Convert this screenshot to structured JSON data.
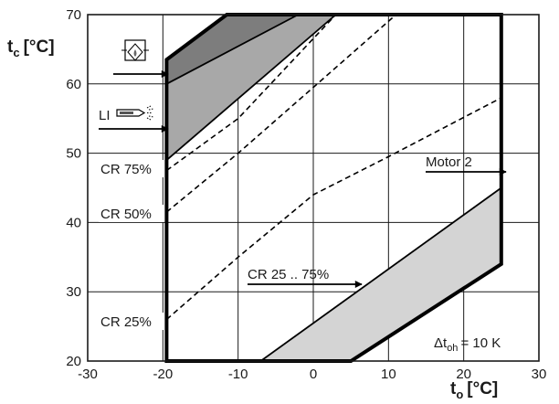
{
  "chart_data": {
    "type": "line",
    "title": "",
    "xlabel": "t",
    "xlabel_sub": "o",
    "xlabel_unit": "[°C]",
    "ylabel": "t",
    "ylabel_sub": "c",
    "ylabel_unit": "[°C]",
    "xlim": [
      -30,
      30
    ],
    "ylim": [
      20,
      70
    ],
    "x_ticks": [
      "-30",
      "-20",
      "-10",
      "0",
      "10",
      "20",
      "30"
    ],
    "y_ticks": [
      "20",
      "30",
      "40",
      "50",
      "60",
      "70"
    ],
    "grid": true,
    "colors": {
      "axis": "#1a1a1a",
      "envelope": "#000000",
      "dark_region": "#7d7d7d",
      "mid_region": "#a8a8a8",
      "light_region": "#d4d4d4"
    },
    "envelope": [
      [
        -19.5,
        20
      ],
      [
        -19.5,
        63.5
      ],
      [
        -11.5,
        70
      ],
      [
        25,
        70
      ],
      [
        25,
        34
      ],
      [
        5,
        20
      ]
    ],
    "regions": [
      {
        "id": "region-dark",
        "fill": "dark_region",
        "points": [
          [
            -19.5,
            60
          ],
          [
            -19.5,
            63.5
          ],
          [
            -11.5,
            70
          ],
          [
            -2,
            70
          ]
        ]
      },
      {
        "id": "region-li",
        "fill": "mid_region",
        "points": [
          [
            -19.5,
            49
          ],
          [
            -19.5,
            60
          ],
          [
            -2,
            70
          ],
          [
            3,
            70
          ]
        ]
      },
      {
        "id": "region-cr",
        "fill": "light_region",
        "points": [
          [
            -7,
            20
          ],
          [
            25,
            45
          ],
          [
            25,
            34
          ],
          [
            5,
            20
          ]
        ]
      }
    ],
    "boundary_lines": [
      {
        "id": "line-upper",
        "style": "solid",
        "points": [
          [
            -19.5,
            60
          ],
          [
            -2,
            70
          ]
        ]
      },
      {
        "id": "line-li",
        "style": "solid",
        "points": [
          [
            -19.5,
            49
          ],
          [
            3,
            70
          ]
        ]
      },
      {
        "id": "line-cr-top",
        "style": "solid",
        "points": [
          [
            -7,
            20
          ],
          [
            25,
            45
          ]
        ]
      }
    ],
    "series": [
      {
        "name": "CR 75%",
        "style": "dashed",
        "points": [
          [
            -19.5,
            47.5
          ],
          [
            -10,
            55
          ],
          [
            3,
            70
          ]
        ]
      },
      {
        "name": "CR 50%",
        "style": "dashed",
        "points": [
          [
            -19.5,
            41.5
          ],
          [
            -10,
            50
          ],
          [
            0,
            59.5
          ],
          [
            11,
            70
          ]
        ]
      },
      {
        "name": "CR 25%",
        "style": "dashed",
        "points": [
          [
            -19.5,
            26
          ],
          [
            -10,
            35
          ],
          [
            0,
            44
          ],
          [
            10,
            49.5
          ],
          [
            25,
            58
          ]
        ]
      }
    ],
    "annotations": {
      "cr75": "CR 75%",
      "cr50": "CR 50%",
      "cr25": "CR 25%",
      "li": "LI",
      "motor": "Motor 2",
      "cr_range": "CR 25 .. 75%",
      "delta": "Δt",
      "delta_sub": "oh",
      "delta_value": "= 10 K"
    }
  }
}
